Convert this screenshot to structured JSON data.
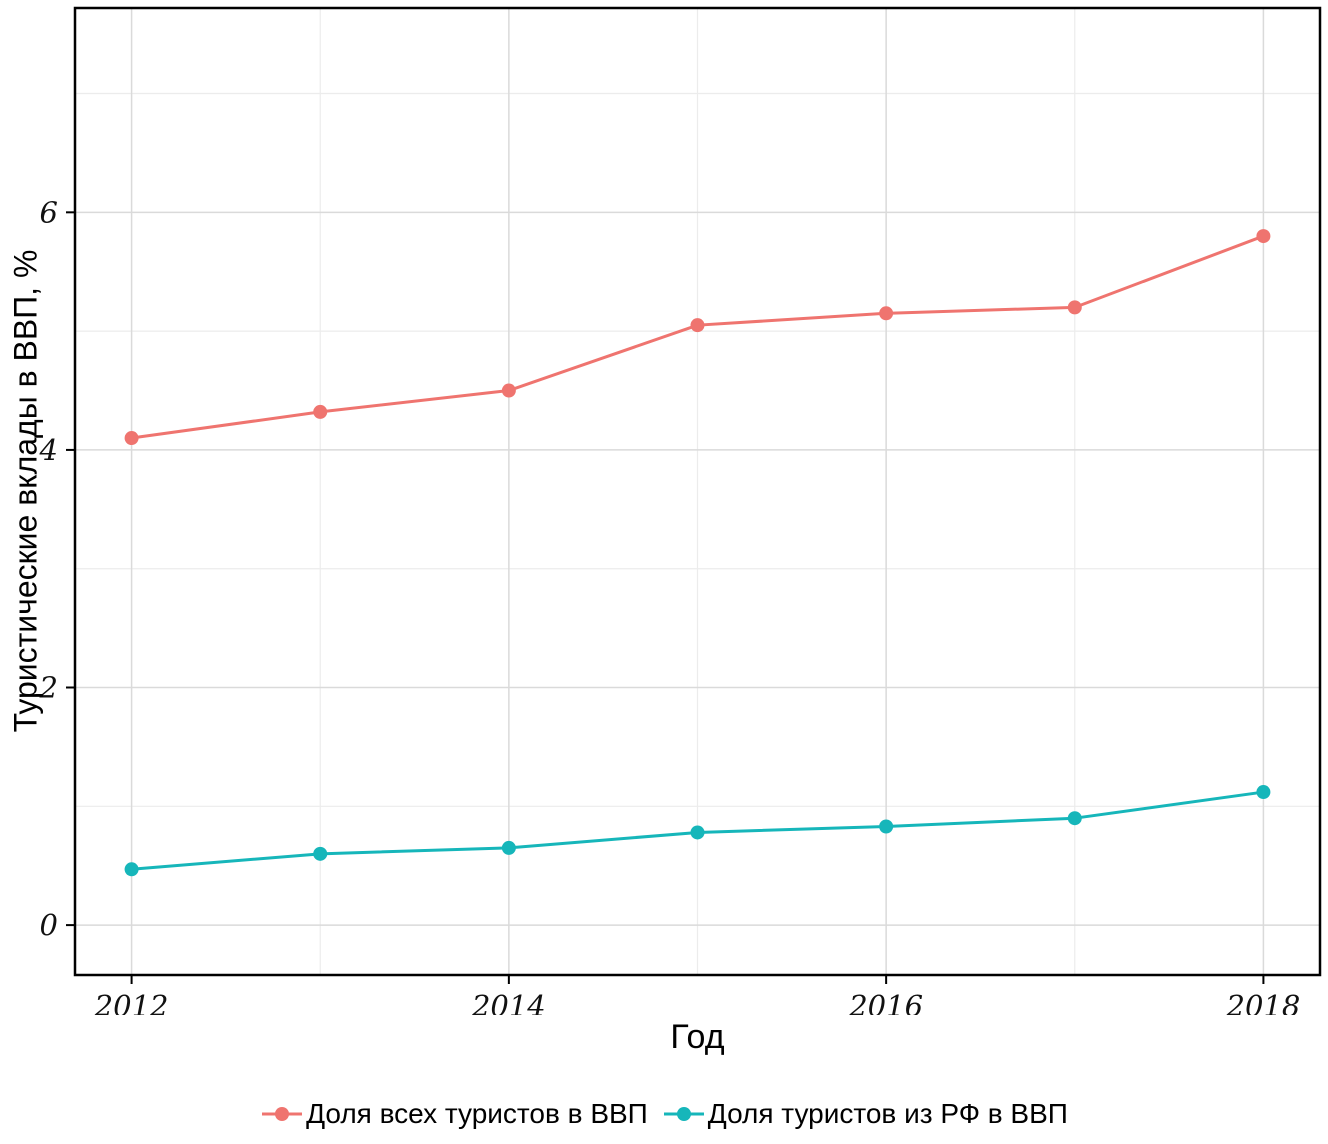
{
  "chart_data": {
    "type": "line",
    "x": [
      2012,
      2013,
      2014,
      2015,
      2016,
      2017,
      2018
    ],
    "series": [
      {
        "name": "Доля всех туристов в ВВП",
        "color": "#ef746f",
        "values": [
          4.1,
          4.32,
          4.5,
          5.05,
          5.15,
          5.2,
          5.8
        ]
      },
      {
        "name": "Доля туристов из РФ в ВВП",
        "color": "#16b6ba",
        "values": [
          0.47,
          0.6,
          0.65,
          0.78,
          0.83,
          0.9,
          1.12
        ]
      }
    ],
    "title": "",
    "xlabel": "Год",
    "ylabel": "Туристические вклады в ВВП, %",
    "x_ticks": [
      2012,
      2014,
      2016,
      2018
    ],
    "y_ticks": [
      0,
      2,
      4,
      6
    ],
    "xlim": [
      2011.7,
      2018.3
    ],
    "ylim": [
      -0.42,
      7.72
    ],
    "grid": true,
    "legend_position": "bottom",
    "panel_border_color": "#000000",
    "grid_major_color": "#dadada",
    "grid_minor_color": "#ececec",
    "point_radius": 7,
    "line_width": 3
  }
}
